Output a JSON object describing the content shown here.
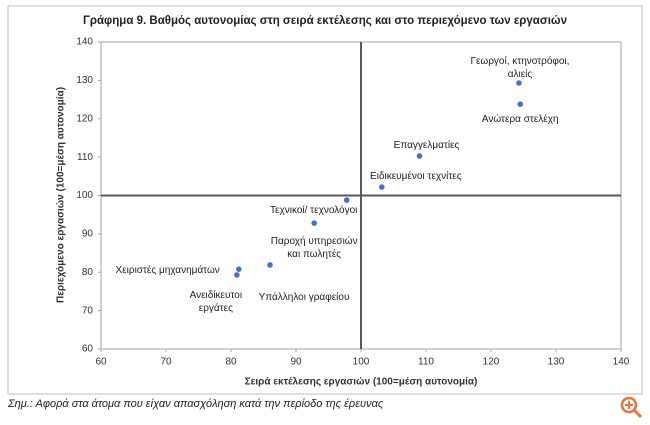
{
  "chart_data": {
    "type": "scatter",
    "title": "Γράφημα 9. Βαθμός αυτονομίας στη σειρά εκτέλεσης και στο περιεχόμενο των εργασιών",
    "x_label": "Σειρά εκτέλεσης εργασιών (100=μέση αυτονομία)",
    "y_label": "Περιεχόμενο εργασιών (100=μέση αυτονομία)",
    "note": "Σημ.: Αφορά στα άτομα που είχαν απασχόληση κατά την περίοδο της έρευνας",
    "color": "#4472c4",
    "labels": [
      [
        "Γεωργοί, κτηνοτρόφοι,",
        "αλιείς"
      ],
      [
        "Ανώτερα στελέχη"
      ],
      [
        "Επαγγελματίες"
      ],
      [
        "Ειδικευμένοι τεχνίτες"
      ],
      [
        "Τεχνικοί/ τεχνολόγοι"
      ],
      [
        "Παροχή υπηρεσιών",
        "και πωλητές"
      ],
      [
        "Υπάλληλοι γραφείου"
      ],
      [
        "Χειριστές μηχανημάτων"
      ],
      [
        "Ανειδίκευτοι",
        "εργάτες"
      ]
    ],
    "x": [
      124.3,
      124.5,
      109,
      103.2,
      97.8,
      92.8,
      86,
      81.2,
      80.9
    ],
    "y": [
      129.3,
      123.8,
      110.3,
      102.2,
      98.8,
      92.8,
      81.9,
      80.8,
      79.3
    ],
    "xlim": [
      60,
      140
    ],
    "xticks": [
      60,
      70,
      80,
      90,
      100,
      110,
      120,
      130,
      140
    ],
    "ylim": [
      60,
      140
    ],
    "yticks": [
      60,
      70,
      80,
      90,
      100,
      110,
      120,
      130,
      140
    ],
    "reference_lines": {
      "x": 100,
      "y": 100
    }
  }
}
